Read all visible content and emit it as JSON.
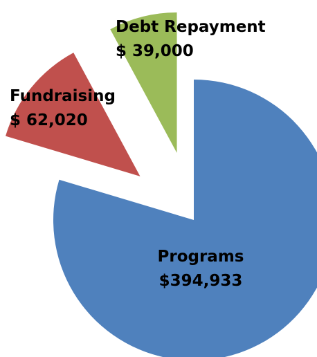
{
  "chart_data": {
    "type": "pie",
    "categories": [
      "Programs",
      "Fundraising",
      "Debt Repayment"
    ],
    "values": [
      394933,
      62020,
      39000
    ],
    "value_labels": [
      "$394,933",
      "$ 62,020",
      "$ 39,000"
    ],
    "colors": [
      "#4f81bd",
      "#c0504d",
      "#9bbb59"
    ]
  }
}
